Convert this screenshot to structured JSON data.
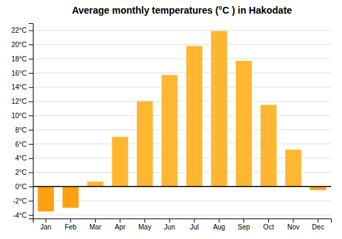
{
  "chart_data": {
    "type": "bar",
    "title": "Average monthly temperatures (°C ) in Hakodate",
    "categories": [
      "Jan",
      "Feb",
      "Mar",
      "Apr",
      "May",
      "Jun",
      "Jul",
      "Aug",
      "Sep",
      "Oct",
      "Nov",
      "Dec"
    ],
    "values": [
      -3.5,
      -3.0,
      0.7,
      7.0,
      12.0,
      15.7,
      19.8,
      21.9,
      17.7,
      11.5,
      5.2,
      -0.5
    ],
    "colors": [
      "#FFA010",
      "#FFA010",
      "#FFB732",
      "#FFB732",
      "#FFB732",
      "#FFB732",
      "#FFB732",
      "#FFB732",
      "#FFB732",
      "#FFB732",
      "#FFB732",
      "#FFA010"
    ],
    "ylim": [
      -4.5,
      23
    ],
    "yticks": [
      {
        "value": -4,
        "label": "-4°C"
      },
      {
        "value": -2,
        "label": "-2°C"
      },
      {
        "value": 0,
        "label": "0°C"
      },
      {
        "value": 2,
        "label": "2°C"
      },
      {
        "value": 4,
        "label": "4°C"
      },
      {
        "value": 6,
        "label": "6°C"
      },
      {
        "value": 8,
        "label": "8°C"
      },
      {
        "value": 10,
        "label": "10°C"
      },
      {
        "value": 12,
        "label": "12°C"
      },
      {
        "value": 14,
        "label": "14°C"
      },
      {
        "value": 16,
        "label": "16°C"
      },
      {
        "value": 18,
        "label": "18°C"
      },
      {
        "value": 20,
        "label": "20°C"
      },
      {
        "value": 22,
        "label": "22°C"
      }
    ],
    "grid": true
  }
}
